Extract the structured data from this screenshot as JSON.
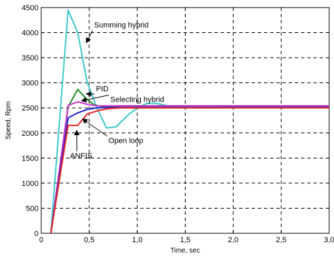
{
  "chart_data": {
    "type": "line",
    "xlabel": "Time, sec",
    "ylabel": "Speed, Rpm",
    "xlim": [
      0,
      3.0
    ],
    "ylim": [
      0,
      4500
    ],
    "xticks": [
      "0",
      "0,5",
      "1,0",
      "1,5",
      "2,0",
      "2,5",
      "3,0"
    ],
    "yticks": [
      "0",
      "500",
      "1000",
      "1500",
      "2000",
      "2500",
      "3000",
      "3500",
      "4000",
      "4500"
    ],
    "grid": true,
    "series": [
      {
        "name": "Summing hybrid",
        "color": "#3cc8c8",
        "x": [
          0.1,
          0.28,
          0.38,
          0.48,
          0.58,
          0.68,
          0.78,
          0.9,
          1.0,
          1.1,
          1.2,
          1.3,
          1.5,
          2.0,
          3.0
        ],
        "y": [
          0,
          4450,
          4000,
          3000,
          2500,
          2100,
          2120,
          2350,
          2500,
          2590,
          2590,
          2550,
          2500,
          2520,
          2520
        ]
      },
      {
        "name": "PID",
        "color": "#1f8a1f",
        "x": [
          0.1,
          0.28,
          0.38,
          0.46,
          0.55,
          0.65,
          0.8,
          1.0,
          3.0
        ],
        "y": [
          0,
          2520,
          2870,
          2700,
          2560,
          2520,
          2540,
          2540,
          2540
        ]
      },
      {
        "name": "Selecting hybrid",
        "color": "#cc33cc",
        "x": [
          0.1,
          0.28,
          0.38,
          0.48,
          0.58,
          1.0,
          3.0
        ],
        "y": [
          0,
          2550,
          2620,
          2570,
          2540,
          2540,
          2540
        ]
      },
      {
        "name": "Open loop",
        "color": "#2222cc",
        "x": [
          0.1,
          0.28,
          0.38,
          0.48,
          0.58,
          0.7,
          1.0,
          3.0
        ],
        "y": [
          0,
          2300,
          2400,
          2470,
          2500,
          2510,
          2510,
          2510
        ]
      },
      {
        "name": "ANFIS",
        "color": "#ee2222",
        "x": [
          0.1,
          0.28,
          0.38,
          0.48,
          0.6,
          0.72,
          0.85,
          1.0,
          3.0
        ],
        "y": [
          0,
          2150,
          2150,
          2380,
          2450,
          2490,
          2500,
          2500,
          2500
        ]
      }
    ],
    "annotations": [
      {
        "text": "Summing hybrid",
        "tx": 0.55,
        "ty": 4100,
        "ax": 0.47,
        "ay": 3800
      },
      {
        "text": "PID",
        "tx": 0.57,
        "ty": 2830,
        "ax": 0.47,
        "ay": 2780
      },
      {
        "text": "Selecting hybrid",
        "tx": 0.72,
        "ty": 2620,
        "ax": 0.42,
        "ay": 2640
      },
      {
        "text": "Open loop",
        "tx": 0.7,
        "ty": 1800,
        "ax": 0.43,
        "ay": 2280
      },
      {
        "text": "ANFIS",
        "tx": 0.3,
        "ty": 1500,
        "ax": 0.37,
        "ay": 2050
      }
    ]
  }
}
